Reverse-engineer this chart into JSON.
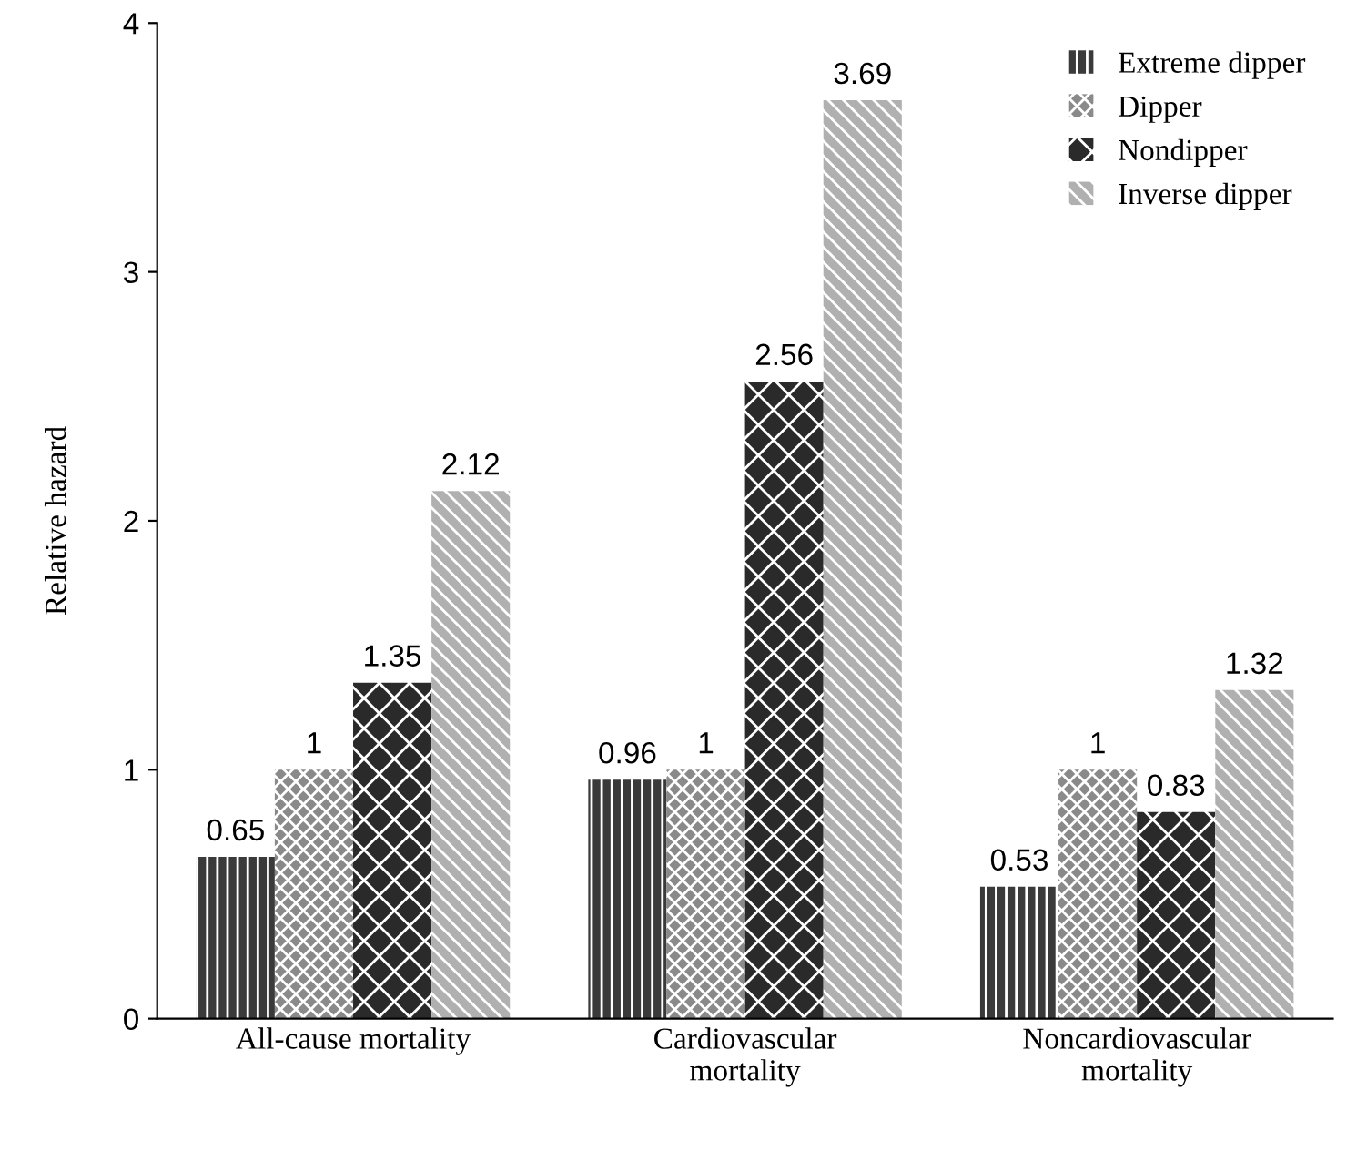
{
  "chart_data": {
    "type": "bar",
    "ylabel": "Relative hazard",
    "categories": [
      "All-cause mortality",
      "Cardiovascular\nmortality",
      "Noncardiovascular\nmortality"
    ],
    "series": [
      {
        "name": "Extreme dipper",
        "color": "#3a3a3a",
        "values": [
          0.65,
          0.96,
          0.53
        ]
      },
      {
        "name": "Dipper",
        "color": "#8a8a8a",
        "values": [
          1,
          1,
          1
        ]
      },
      {
        "name": "Nondipper",
        "color": "#2a2a2a",
        "values": [
          1.35,
          2.56,
          0.83
        ]
      },
      {
        "name": "Inverse dipper",
        "color": "#b0b0b0",
        "values": [
          2.12,
          3.69,
          1.32
        ]
      }
    ],
    "ylim": [
      0,
      4
    ],
    "yticks": [
      0,
      1,
      2,
      3,
      4
    ],
    "grid": false,
    "legend": "top right",
    "data_labels": true
  }
}
